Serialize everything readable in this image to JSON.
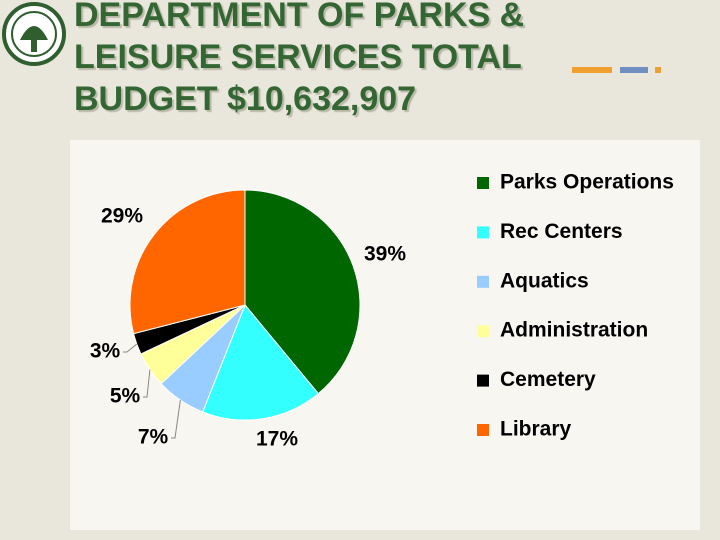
{
  "chart_data": {
    "type": "pie",
    "title": "DEPARTMENT OF PARKS & LEISURE SERVICES TOTAL BUDGET $10,632,907",
    "categories": [
      "Parks Operations",
      "Rec Centers",
      "Aquatics",
      "Administration",
      "Cemetery",
      "Library"
    ],
    "values": [
      39,
      17,
      7,
      5,
      3,
      29
    ],
    "value_labels": [
      "39%",
      "17%",
      "7%",
      "5%",
      "3%",
      "29%"
    ],
    "colors": [
      "#006600",
      "#33ffff",
      "#99ccff",
      "#ffff99",
      "#000000",
      "#ff6600"
    ],
    "legend": "right"
  }
}
